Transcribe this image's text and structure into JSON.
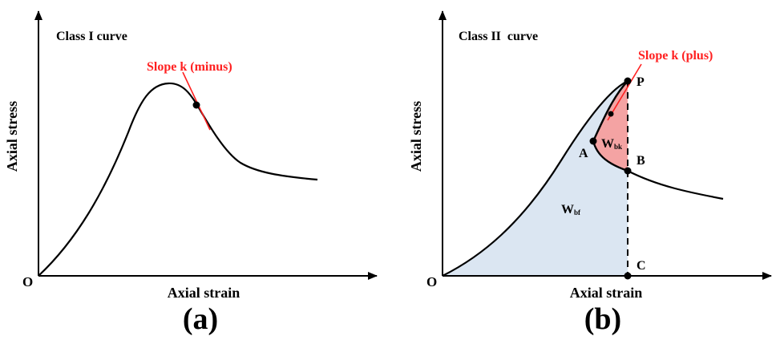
{
  "colors": {
    "ink": "#000000",
    "highlight_red": "#ff2020",
    "release_fill": "#f4a3a3",
    "absorbed_fill": "#dbe6f2"
  },
  "panel_a": {
    "label": "(a)",
    "title": "Class I curve",
    "ylabel": "Axial stress",
    "xlabel": "Axial strain",
    "origin": "O",
    "slope_label": "Slope k (minus)"
  },
  "panel_b": {
    "label": "(b)",
    "title": "Class II  curve",
    "ylabel": "Axial stress",
    "xlabel": "Axial strain",
    "origin": "O",
    "slope_label": "Slope k (plus)",
    "points": {
      "p": "P",
      "a": "A",
      "b": "B",
      "c": "C"
    },
    "area_upper": {
      "main": "W",
      "sub": "bk"
    },
    "area_lower": {
      "main": "W",
      "sub": "bf"
    }
  }
}
